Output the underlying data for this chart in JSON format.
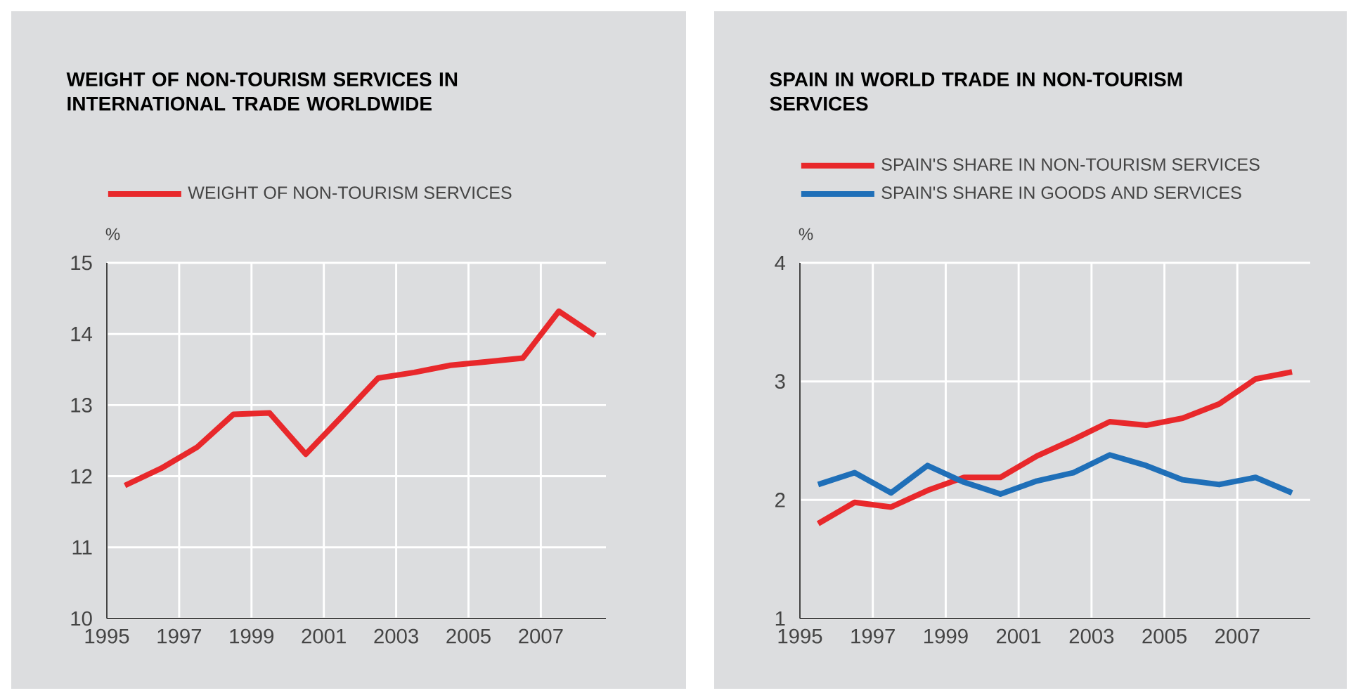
{
  "chart_data": [
    {
      "type": "line",
      "title": "WEIGHT OF NON-TOURISM SERVICES IN INTERNATIONAL TRADE WORLDWIDE",
      "ylabel": "%",
      "x": [
        1995.5,
        1996.5,
        1997.5,
        1998.5,
        1999.5,
        2000.5,
        2001.5,
        2002.5,
        2003.5,
        2004.5,
        2005.5,
        2006.5,
        2007.5,
        2008.5
      ],
      "series": [
        {
          "name": "WEIGHT OF NON-TOURISM SERVICES",
          "color": "#e8282b",
          "values": [
            11.87,
            12.11,
            12.41,
            12.87,
            12.89,
            12.31,
            12.84,
            13.38,
            13.46,
            13.56,
            13.61,
            13.66,
            14.32,
            13.98
          ]
        }
      ],
      "xlim": [
        1995,
        2008.8
      ],
      "xticks": [
        1995,
        1997,
        1999,
        2001,
        2003,
        2005,
        2007
      ],
      "ylim": [
        10,
        15
      ],
      "yticks": [
        10,
        11,
        12,
        13,
        14,
        15
      ],
      "grid": true,
      "legend": "top left",
      "marker": "none",
      "line_style": "solid"
    },
    {
      "type": "line",
      "title": "SPAIN IN WORLD TRADE IN NON-TOURISM SERVICES",
      "ylabel": "%",
      "x": [
        1995.5,
        1996.5,
        1997.5,
        1998.5,
        1999.5,
        2000.5,
        2001.5,
        2002.5,
        2003.5,
        2004.5,
        2005.5,
        2006.5,
        2007.5,
        2008.5
      ],
      "series": [
        {
          "name": "SPAIN'S SHARE IN NON-TOURISM SERVICES",
          "color": "#e8282b",
          "values": [
            1.8,
            1.98,
            1.94,
            2.08,
            2.19,
            2.19,
            2.37,
            2.51,
            2.66,
            2.63,
            2.69,
            2.81,
            3.02,
            3.08
          ]
        },
        {
          "name": "SPAIN'S SHARE IN GOODS AND SERVICES",
          "color": "#1f6fb8",
          "values": [
            2.13,
            2.23,
            2.06,
            2.29,
            2.15,
            2.05,
            2.16,
            2.23,
            2.38,
            2.29,
            2.17,
            2.13,
            2.19,
            2.06
          ]
        }
      ],
      "xlim": [
        1995,
        2009
      ],
      "xticks": [
        1995,
        1997,
        1999,
        2001,
        2003,
        2005,
        2007
      ],
      "ylim": [
        1,
        4
      ],
      "yticks": [
        1,
        2,
        3,
        4
      ],
      "grid": true,
      "legend": "top left",
      "marker": "none",
      "line_style": "solid"
    }
  ]
}
